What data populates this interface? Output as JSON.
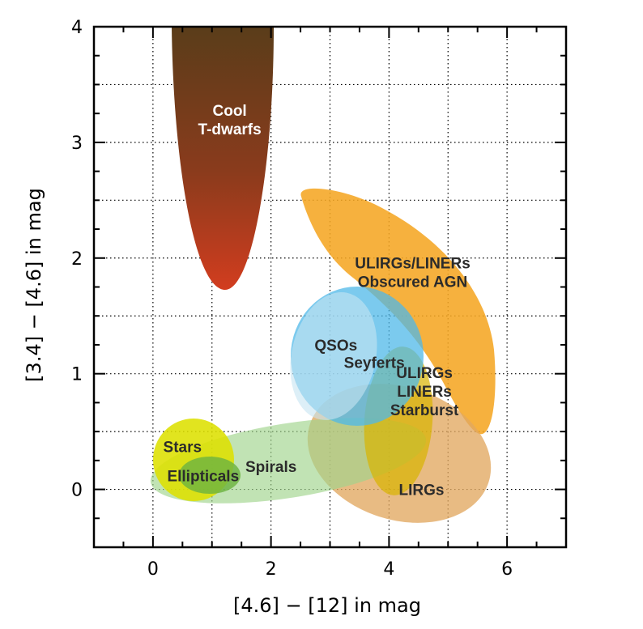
{
  "chart_data": {
    "type": "diagram-regions",
    "title": "",
    "xlabel": "[4.6] − [12] in mag",
    "ylabel": "[3.4] − [4.6] in mag",
    "xlim": [
      -1,
      7
    ],
    "ylim": [
      -0.5,
      4
    ],
    "xticks": [
      0,
      2,
      4,
      6
    ],
    "yticks": [
      0,
      1,
      2,
      3,
      4
    ],
    "grid": true,
    "regions": [
      {
        "name": "Cool T-dwarfs",
        "label_lines": [
          "Cool",
          "T-dwarfs"
        ],
        "label_color": "#ffffff",
        "color_top": "#5a3d1a",
        "color_bottom": "#d23d1f",
        "label_at": [
          1.3,
          3.2
        ]
      },
      {
        "name": "ULIRGs/LINERs Obscured AGN",
        "label_lines": [
          "ULIRGs/LINERs",
          "Obscured AGN"
        ],
        "label_color": "#2b2b2b",
        "color": "#f5a623",
        "label_at": [
          4.4,
          1.88
        ]
      },
      {
        "name": "LIRGs",
        "label_lines": [
          "LIRGs"
        ],
        "label_color": "#2b2b2b",
        "color": "#e2a860",
        "label_at": [
          4.55,
          0
        ]
      },
      {
        "name": "Spirals",
        "label_lines": [
          "Spirals"
        ],
        "label_color": "#2b2b2b",
        "color": "#9fd48c",
        "label_at": [
          2.0,
          0.2
        ]
      },
      {
        "name": "Stars",
        "label_lines": [
          "Stars"
        ],
        "label_color": "#2b2b2b",
        "color": "#dde000",
        "label_at": [
          0.5,
          0.37
        ]
      },
      {
        "name": "Ellipticals",
        "label_lines": [
          "Ellipticals"
        ],
        "label_color": "#2b2b2b",
        "color": "#6cb33f",
        "label_at": [
          0.85,
          0.12
        ]
      },
      {
        "name": "ULIRGs LINERs Starburst",
        "label_lines": [
          "ULIRGs",
          "LINERs",
          "Starburst"
        ],
        "label_color": "#2b2b2b",
        "color": "#d9b300",
        "label_at": [
          4.6,
          0.85
        ]
      },
      {
        "name": "QSOs",
        "label_lines": [
          "QSOs"
        ],
        "label_color": "#2b2b2b",
        "color": "#4fb8e8",
        "label_at": [
          3.1,
          1.25
        ]
      },
      {
        "name": "Seyferts",
        "label_lines": [
          "Seyferts"
        ],
        "label_color": "#2b2b2b",
        "color": "#b8dcec",
        "label_at": [
          3.75,
          1.1
        ]
      }
    ]
  }
}
